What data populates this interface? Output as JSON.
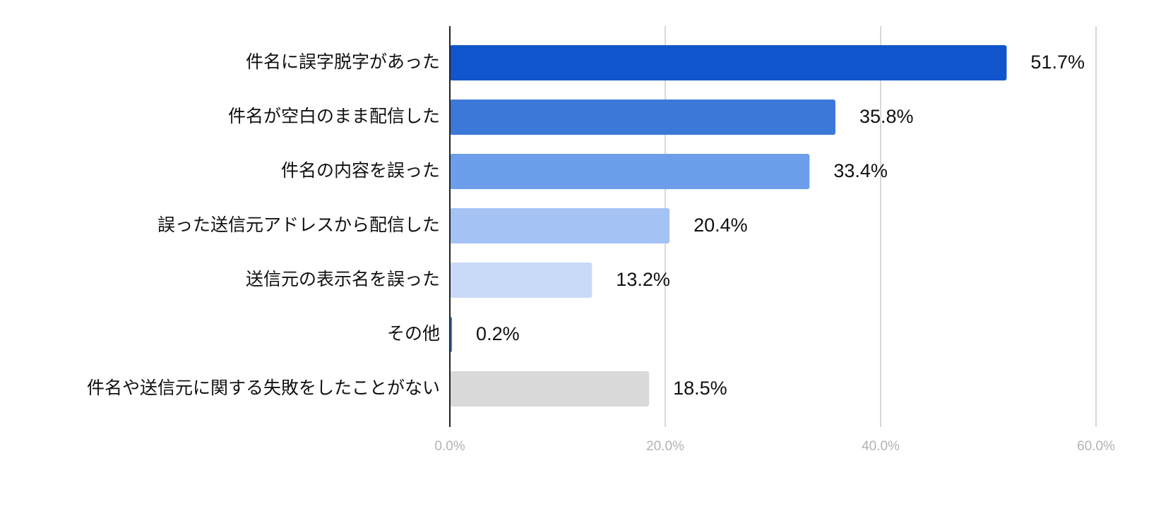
{
  "chart_data": {
    "type": "bar",
    "orientation": "horizontal",
    "categories": [
      "件名に誤字脱字があった",
      "件名が空白のまま配信した",
      "件名の内容を誤った",
      "誤った送信元アドレスから配信した",
      "送信元の表示名を誤った",
      "その他",
      "件名や送信元に関する失敗をしたことがない"
    ],
    "values": [
      51.7,
      35.8,
      33.4,
      20.4,
      13.2,
      0.2,
      18.5
    ],
    "value_labels": [
      "51.7%",
      "35.8%",
      "33.4%",
      "20.4%",
      "13.2%",
      "0.2%",
      "18.5%"
    ],
    "bar_colors": [
      "#1155cc",
      "#3c78d8",
      "#6d9eeb",
      "#a4c2f4",
      "#c9daf8",
      "#3c78d8",
      "#d9d9d9"
    ],
    "xlim": [
      0,
      60
    ],
    "xticks": [
      0,
      20,
      40,
      60
    ],
    "xtick_labels": [
      "0.0%",
      "20.0%",
      "40.0%",
      "60.0%"
    ],
    "grid": true,
    "legend": "none",
    "title": "",
    "xlabel": "",
    "ylabel": ""
  }
}
